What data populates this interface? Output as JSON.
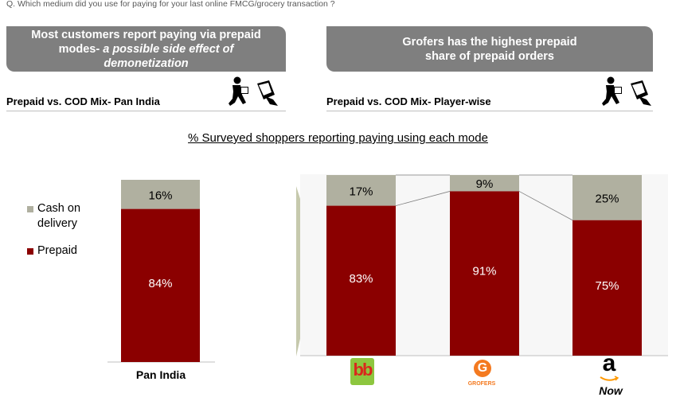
{
  "question": "Q. Which medium did you use for paying for your last online FMCG/grocery transaction ?",
  "banner_left": {
    "text_plain": "Most customers report paying via prepaid modes-",
    "text_italic": " a possible side effect of demonetization"
  },
  "banner_right": {
    "text": "Grofers has the highest prepaid share of prepaid orders"
  },
  "section_left_title": "Prepaid vs. COD Mix- Pan India",
  "section_right_title": "Prepaid vs. COD Mix- Player-wise",
  "main_title": "% Surveyed shoppers reporting paying using each mode",
  "colors": {
    "prepaid": "#8b0000",
    "cod": "#b0b0a0",
    "banner": "#7f7f7f",
    "arrow": "#bcbf9f"
  },
  "icons": [
    "delivery-man-icon",
    "card-payment-icon",
    "bigbasket-logo",
    "grofers-logo",
    "amazon-now-logo"
  ],
  "chart_data": [
    {
      "type": "bar",
      "stacked": true,
      "categories": [
        "Pan India"
      ],
      "series": [
        {
          "name": "Prepaid",
          "values": [
            84
          ]
        },
        {
          "name": "Cash on delivery",
          "values": [
            16
          ]
        }
      ],
      "data_labels": [
        "84%",
        "16%"
      ],
      "legend": [
        "Cash on delivery",
        "Prepaid"
      ],
      "legend_position": "left",
      "ylim": [
        0,
        100
      ],
      "grid": false
    },
    {
      "type": "bar",
      "stacked": true,
      "categories": [
        "bigbasket",
        "GROFERS",
        "Now"
      ],
      "series": [
        {
          "name": "Prepaid",
          "values": [
            83,
            91,
            75
          ]
        },
        {
          "name": "Cash on delivery",
          "values": [
            17,
            9,
            25
          ]
        }
      ],
      "ylim": [
        0,
        100
      ],
      "grid": false
    }
  ],
  "logo_text": {
    "grofers": "GROFERS",
    "amazon_now": "Now",
    "amazon_a": "a",
    "bigbasket": "bb"
  }
}
